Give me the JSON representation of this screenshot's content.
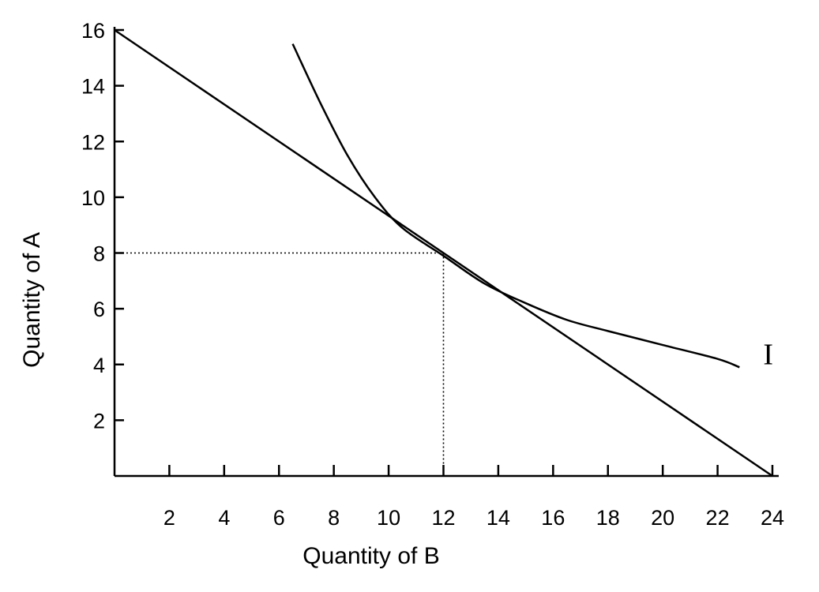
{
  "chart_data": {
    "type": "line",
    "title": "",
    "xlabel": "Quantity of B",
    "ylabel": "Quantity of A",
    "xlim": [
      0,
      24
    ],
    "ylim": [
      0,
      16
    ],
    "x_ticks": [
      2,
      4,
      6,
      8,
      10,
      12,
      14,
      16,
      18,
      20,
      22,
      24
    ],
    "y_ticks": [
      2,
      4,
      6,
      8,
      10,
      12,
      14,
      16
    ],
    "grid": false,
    "series": [
      {
        "kind": "budget-line",
        "points": [
          [
            0,
            16
          ],
          [
            24,
            0
          ]
        ]
      },
      {
        "kind": "indifference-curve",
        "name": "I",
        "points": [
          [
            6.5,
            15.5
          ],
          [
            7.5,
            13.4
          ],
          [
            8.5,
            11.5
          ],
          [
            9.5,
            10.0
          ],
          [
            10.5,
            8.9
          ],
          [
            12,
            7.9
          ],
          [
            13.5,
            6.9
          ],
          [
            15,
            6.2
          ],
          [
            16.5,
            5.6
          ],
          [
            18,
            5.2
          ],
          [
            20,
            4.7
          ],
          [
            22,
            4.2
          ],
          [
            22.8,
            3.9
          ]
        ]
      }
    ],
    "annotations": [
      {
        "kind": "tangency-guides",
        "point": [
          12,
          8
        ]
      }
    ]
  }
}
